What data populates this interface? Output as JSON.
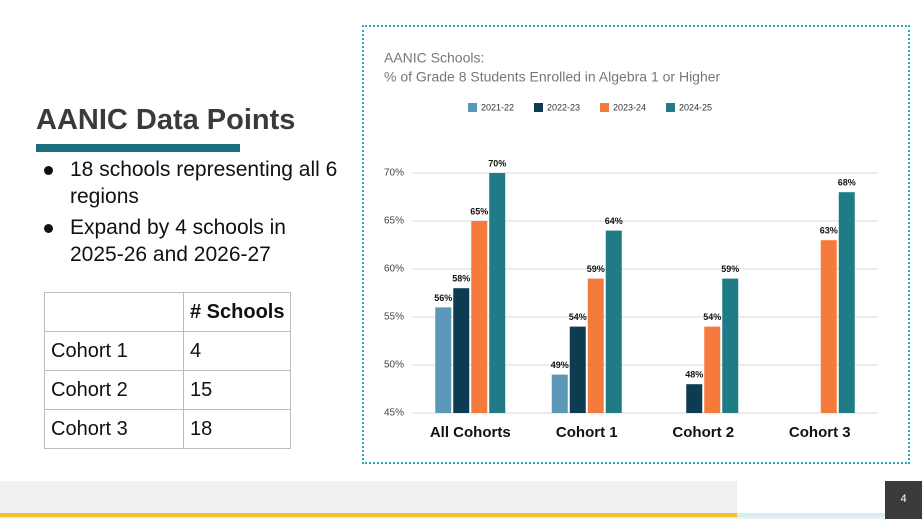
{
  "slide": {
    "title": "AANIC Data Points",
    "bullets": [
      "18 schools representing all 6 regions",
      "Expand by 4 schools in 2025-26 and 2026-27"
    ],
    "table": {
      "header": "# Schools",
      "rows": [
        [
          "Cohort 1",
          4
        ],
        [
          "Cohort 2",
          15
        ],
        [
          "Cohort 3",
          18
        ]
      ]
    },
    "page_number": 4
  },
  "chart_data": {
    "type": "bar",
    "title": "AANIC Schools:",
    "subtitle": "% of Grade 8 Students Enrolled in Algebra 1 or Higher",
    "categories": [
      "All Cohorts",
      "Cohort 1",
      "Cohort 2",
      "Cohort 3"
    ],
    "series": [
      {
        "name": "2021-22",
        "color": "#5b97b6",
        "values": [
          56,
          49,
          null,
          null
        ],
        "value_labels": [
          "56%",
          "49%",
          null,
          null
        ]
      },
      {
        "name": "2022-23",
        "color": "#0d3b52",
        "values": [
          58,
          54,
          48,
          null
        ],
        "value_labels": [
          "58%",
          "54%",
          "48%",
          null
        ]
      },
      {
        "name": "2023-24",
        "color": "#f57b3c",
        "values": [
          65,
          59,
          54,
          63
        ],
        "value_labels": [
          "65%",
          "59%",
          "54%",
          "63%"
        ]
      },
      {
        "name": "2024-25",
        "color": "#1f7c86",
        "values": [
          70,
          64,
          59,
          68
        ],
        "value_labels": [
          "70%",
          "64%",
          "59%",
          "68%"
        ]
      }
    ],
    "ylim": [
      45,
      70
    ],
    "yticks": [
      {
        "value": 45,
        "label": "45%"
      },
      {
        "value": 50,
        "label": "50%"
      },
      {
        "value": 55,
        "label": "55%"
      },
      {
        "value": 60,
        "label": "60%"
      },
      {
        "value": 65,
        "label": "65%"
      },
      {
        "value": 70,
        "label": "70%"
      }
    ],
    "grid": true,
    "legend": "top"
  }
}
